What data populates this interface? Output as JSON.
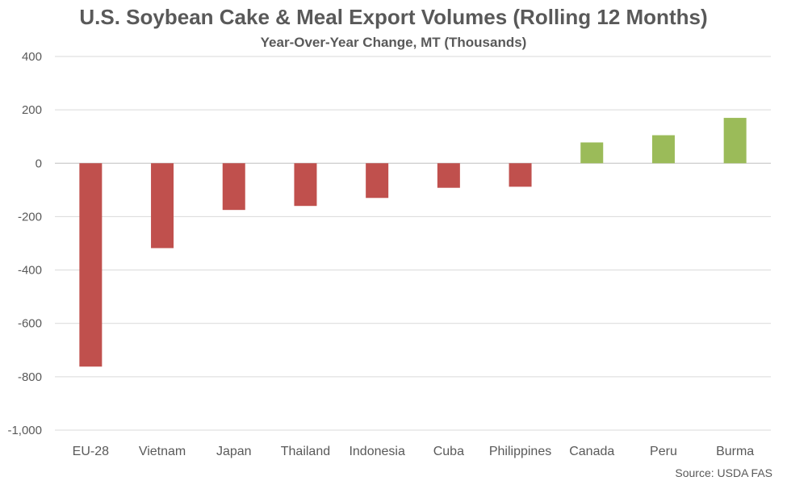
{
  "chart_data": {
    "type": "bar",
    "title": "U.S. Soybean Cake & Meal Export Volumes (Rolling 12 Months)",
    "subtitle": "Year-Over-Year Change, MT (Thousands)",
    "categories": [
      "EU-28",
      "Vietnam",
      "Japan",
      "Thailand",
      "Indonesia",
      "Cuba",
      "Philippines",
      "Canada",
      "Peru",
      "Burma"
    ],
    "values": [
      -762,
      -318,
      -175,
      -160,
      -130,
      -92,
      -88,
      78,
      105,
      170
    ],
    "ylim": [
      -1000,
      400
    ],
    "yticks": [
      400,
      200,
      0,
      -200,
      -400,
      -600,
      -800,
      -1000
    ],
    "ytick_labels": [
      "400",
      "200",
      "0",
      "-200",
      "-400",
      "-600",
      "-800",
      "-1,000"
    ],
    "grid": true,
    "legend": "none",
    "colors": {
      "negative": "#c0504d",
      "positive": "#9bbb59",
      "grid": "#d9d9d9",
      "axis": "#bfbfbf",
      "text": "#595959"
    }
  },
  "source": "Source: USDA FAS"
}
